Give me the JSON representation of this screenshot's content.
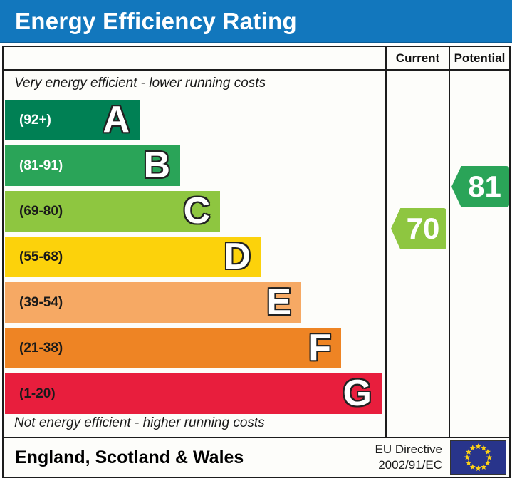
{
  "title": "Energy Efficiency Rating",
  "columns": {
    "current": "Current",
    "potential": "Potential"
  },
  "captions": {
    "top": "Very energy efficient - lower running costs",
    "bottom": "Not energy efficient - higher running costs"
  },
  "chart_data": {
    "type": "bar",
    "title": "Energy Efficiency Rating",
    "bands": [
      {
        "letter": "A",
        "range": "(92+)",
        "min": 92,
        "max": 100,
        "color": "#008054",
        "label_color": "#ffffff",
        "bar_length": 189
      },
      {
        "letter": "B",
        "range": "(81-91)",
        "min": 81,
        "max": 91,
        "color": "#2aa458",
        "label_color": "#ffffff",
        "bar_length": 246
      },
      {
        "letter": "C",
        "range": "(69-80)",
        "min": 69,
        "max": 80,
        "color": "#8ec640",
        "label_color": "#1a1a1a",
        "bar_length": 302
      },
      {
        "letter": "D",
        "range": "(55-68)",
        "min": 55,
        "max": 68,
        "color": "#fcd20b",
        "label_color": "#1a1a1a",
        "bar_length": 359
      },
      {
        "letter": "E",
        "range": "(39-54)",
        "min": 39,
        "max": 54,
        "color": "#f6a964",
        "label_color": "#1a1a1a",
        "bar_length": 416
      },
      {
        "letter": "F",
        "range": "(21-38)",
        "min": 21,
        "max": 38,
        "color": "#ee8424",
        "label_color": "#1a1a1a",
        "bar_length": 472
      },
      {
        "letter": "G",
        "range": "(1-20)",
        "min": 1,
        "max": 20,
        "color": "#e81e3d",
        "label_color": "#1a1a1a",
        "bar_length": 529
      }
    ],
    "current": {
      "value": 70,
      "band": "C",
      "color": "#8ec640"
    },
    "potential": {
      "value": 81,
      "band": "B",
      "color": "#2aa458"
    }
  },
  "footer": {
    "region": "England, Scotland & Wales",
    "directive_line1": "EU Directive",
    "directive_line2": "2002/91/EC",
    "flag": {
      "background": "#28348b",
      "star_color": "#fcd116"
    }
  },
  "colors": {
    "title_bar": "#1277bd",
    "border": "#1c1c1c",
    "chart_background": "#fdfdfa"
  }
}
